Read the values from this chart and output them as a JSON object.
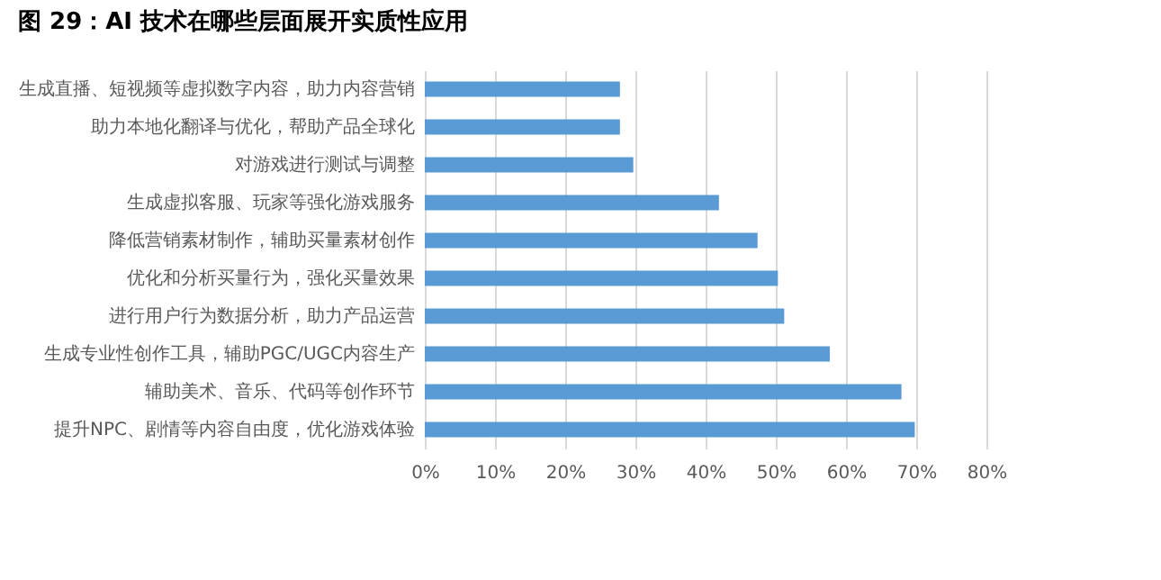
{
  "chart_data": {
    "type": "bar",
    "orientation": "horizontal",
    "title": "图 29：AI 技术在哪些层面展开实质性应用",
    "categories": [
      "生成直播、短视频等虚拟数字内容，助力内容营销",
      "助力本地化翻译与优化，帮助产品全球化",
      "对游戏进行测试与调整",
      "生成虚拟客服、玩家等强化游戏服务",
      "降低营销素材制作，辅助买量素材创作",
      "优化和分析买量行为，强化买量效果",
      "进行用户行为数据分析，助力产品运营",
      "生成专业性创作工具，辅助PGC/UGC内容生产",
      "辅助美术、音乐、代码等创作环节",
      "提升NPC、剧情等内容自由度，优化游戏体验"
    ],
    "values": [
      27.8,
      27.8,
      29.7,
      41.9,
      47.4,
      50.3,
      51.2,
      57.7,
      67.9,
      69.8
    ],
    "color": "#5b9bd5",
    "xlim": [
      0,
      80
    ],
    "xticks": [
      {
        "value": 0,
        "label": "0%"
      },
      {
        "value": 10,
        "label": "10%"
      },
      {
        "value": 20,
        "label": "20%"
      },
      {
        "value": 30,
        "label": "30%"
      },
      {
        "value": 40,
        "label": "40%"
      },
      {
        "value": 50,
        "label": "50%"
      },
      {
        "value": 60,
        "label": "60%"
      },
      {
        "value": 70,
        "label": "70%"
      },
      {
        "value": 80,
        "label": "80%"
      }
    ],
    "grid": "x"
  }
}
